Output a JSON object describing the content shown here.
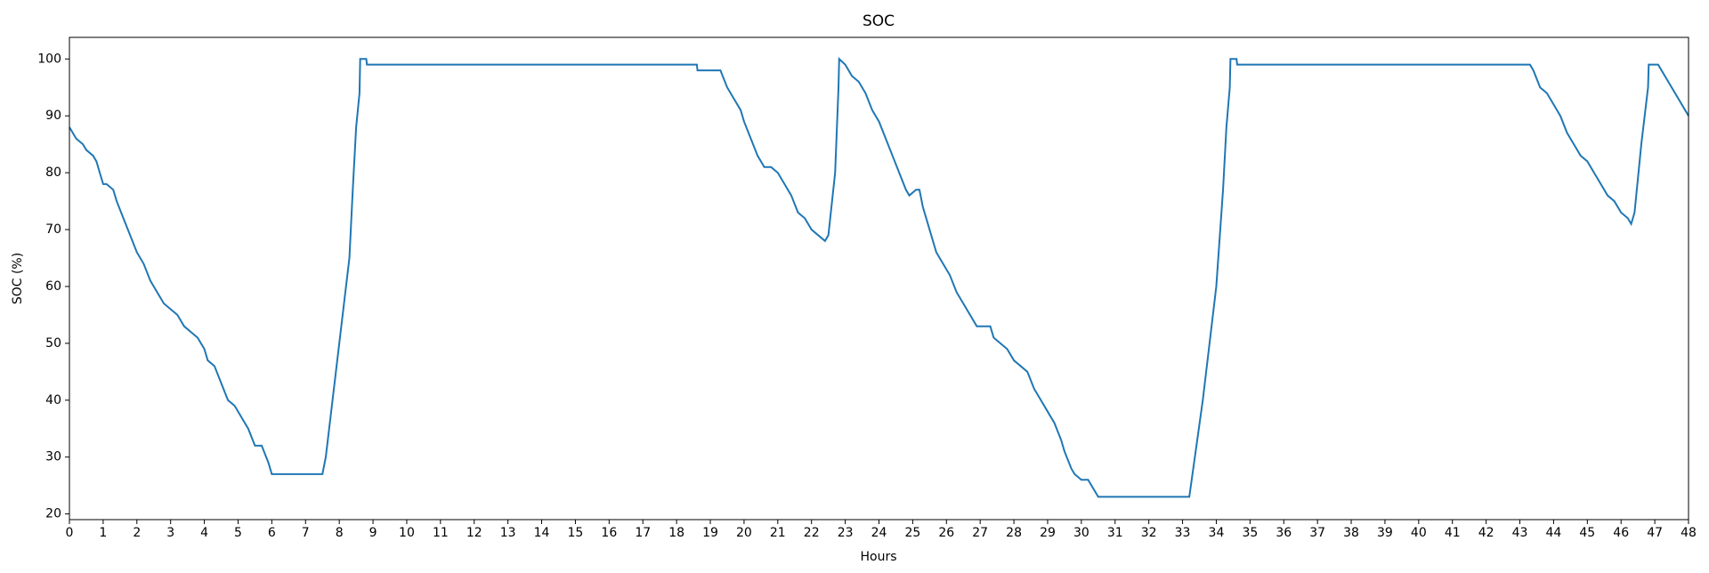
{
  "chart_data": {
    "type": "line",
    "title": "SOC",
    "x_label": "Hours",
    "y_label": "SOC (%)",
    "xlim": [
      0,
      48
    ],
    "ylim": [
      19,
      103.8
    ],
    "xticks": [
      0,
      1,
      2,
      3,
      4,
      5,
      6,
      7,
      8,
      9,
      10,
      11,
      12,
      13,
      14,
      15,
      16,
      17,
      18,
      19,
      20,
      21,
      22,
      23,
      24,
      25,
      26,
      27,
      28,
      29,
      30,
      31,
      32,
      33,
      34,
      35,
      36,
      37,
      38,
      39,
      40,
      41,
      42,
      43,
      44,
      45,
      46,
      47,
      48
    ],
    "yticks": [
      20,
      30,
      40,
      50,
      60,
      70,
      80,
      90,
      100
    ],
    "x": [
      0,
      0.1,
      0.2,
      0.4,
      0.5,
      0.7,
      0.8,
      0.9,
      1.0,
      1.1,
      1.3,
      1.4,
      1.6,
      1.8,
      2.0,
      2.2,
      2.4,
      2.6,
      2.8,
      3.0,
      3.2,
      3.4,
      3.6,
      3.8,
      4.0,
      4.1,
      4.3,
      4.5,
      4.7,
      4.9,
      5.1,
      5.3,
      5.5,
      5.7,
      5.9,
      6.0,
      6.1,
      7.5,
      7.6,
      8.0,
      8.3,
      8.4,
      8.5,
      8.6,
      8.62,
      8.8,
      8.82,
      18.6,
      18.62,
      19.3,
      19.5,
      19.7,
      19.9,
      20.0,
      20.2,
      20.4,
      20.6,
      20.8,
      21.0,
      21.2,
      21.4,
      21.6,
      21.8,
      22.0,
      22.2,
      22.4,
      22.5,
      22.7,
      22.8,
      22.82,
      23.0,
      23.2,
      23.4,
      23.6,
      23.8,
      24.0,
      24.2,
      24.4,
      24.6,
      24.8,
      24.9,
      25.1,
      25.2,
      25.3,
      25.5,
      25.7,
      25.9,
      26.1,
      26.3,
      26.5,
      26.7,
      26.9,
      27.1,
      27.3,
      27.4,
      27.6,
      27.8,
      28.0,
      28.2,
      28.4,
      28.6,
      28.8,
      29.0,
      29.2,
      29.4,
      29.5,
      29.7,
      29.8,
      30.0,
      30.2,
      30.3,
      30.5,
      33.2,
      33.6,
      34.0,
      34.2,
      34.3,
      34.4,
      34.42,
      34.6,
      34.62,
      43.3,
      43.4,
      43.6,
      43.8,
      44.0,
      44.2,
      44.4,
      44.6,
      44.8,
      45.0,
      45.2,
      45.4,
      45.6,
      45.8,
      46.0,
      46.2,
      46.3,
      46.4,
      46.6,
      46.8,
      46.82,
      47.1,
      47.3,
      47.5,
      47.7,
      47.9,
      48.0
    ],
    "series": [
      {
        "color": "#1f77b4",
        "values": [
          88,
          87,
          86,
          85,
          84,
          83,
          82,
          80,
          78,
          78,
          77,
          75,
          72,
          69,
          66,
          64,
          61,
          59,
          57,
          56,
          55,
          53,
          52,
          51,
          49,
          47,
          46,
          43,
          40,
          39,
          37,
          35,
          32,
          32,
          29,
          27,
          27,
          27,
          30,
          50,
          65,
          77,
          88,
          94,
          100,
          100,
          99,
          99,
          98,
          98,
          95,
          93,
          91,
          89,
          86,
          83,
          81,
          81,
          80,
          78,
          76,
          73,
          72,
          70,
          69,
          68,
          69,
          80,
          95,
          100,
          99,
          97,
          96,
          94,
          91,
          89,
          86,
          83,
          80,
          77,
          76,
          77,
          77,
          74,
          70,
          66,
          64,
          62,
          59,
          57,
          55,
          53,
          53,
          53,
          51,
          50,
          49,
          47,
          46,
          45,
          42,
          40,
          38,
          36,
          33,
          31,
          28,
          27,
          26,
          26,
          25,
          23,
          23,
          40,
          60,
          77,
          88,
          95,
          100,
          100,
          99,
          99,
          98,
          95,
          94,
          92,
          90,
          87,
          85,
          83,
          82,
          80,
          78,
          76,
          75,
          73,
          72,
          71,
          73,
          85,
          95,
          99,
          99,
          97,
          95,
          93,
          91,
          90
        ]
      }
    ]
  }
}
